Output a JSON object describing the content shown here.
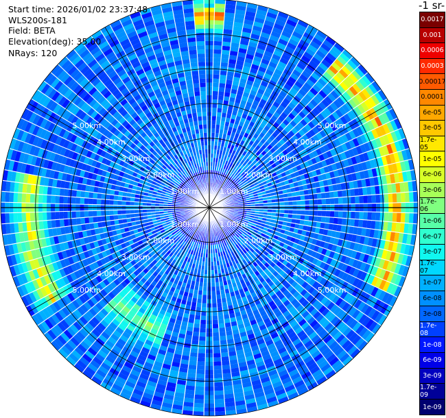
{
  "info": {
    "start_time": "Start time: 2026/01/02 23:37:48",
    "instrument": "WLS200s-181",
    "field": "Field: BETA",
    "elevation": "Elevation(deg): 35.00",
    "nrays": "NRays: 120"
  },
  "colorbar": {
    "title": "-1 sr-",
    "labels": [
      "0.0017",
      "0.001",
      "0.0006",
      "0.0003",
      "0.00017",
      "0.0001",
      "6e-05",
      "3e-05",
      "1.7e-05",
      "1e-05",
      "6e-06",
      "3e-06",
      "1.7e-06",
      "1e-06",
      "6e-07",
      "3e-07",
      "1.7e-07",
      "1e-07",
      "6e-08",
      "3e-08",
      "1.7e-08",
      "1e-08",
      "6e-09",
      "3e-09",
      "1.7e-09",
      "1e-09"
    ],
    "colors": [
      "#7a0000",
      "#b80000",
      "#ee0000",
      "#ff2a00",
      "#ff5a00",
      "#ff8800",
      "#ffa800",
      "#ffc800",
      "#ffe800",
      "#ffff00",
      "#d8ff28",
      "#a8ff58",
      "#80ff80",
      "#58ffa8",
      "#30ffd0",
      "#10f8f0",
      "#00d8ff",
      "#00b0ff",
      "#0090ff",
      "#0068ff",
      "#0040ff",
      "#0018ff",
      "#0000e8",
      "#0000c0",
      "#000098",
      "#000070"
    ]
  },
  "chart_data": {
    "type": "heatmap",
    "projection": "polar-ppi",
    "field": "BETA",
    "nrays": 120,
    "elevation_deg": 35.0,
    "range_unit": "km",
    "range_rings_km": [
      1,
      2,
      3,
      4,
      5
    ],
    "ring_labels": [
      "1.00km",
      "2.00km",
      "3.00km",
      "4.00km",
      "5.00km"
    ],
    "max_range_km": 6.0,
    "value_range": [
      1e-09,
      0.0017
    ],
    "log_scale": true,
    "enhanced_sectors": [
      {
        "azimuth_deg_from_north": [
          40,
          115
        ],
        "range_km": [
          4.8,
          5.9
        ],
        "peak_value": 0.0003
      },
      {
        "azimuth_deg_from_north": [
          -5,
          5
        ],
        "range_km": [
          4.9,
          6.0
        ],
        "peak_value": 0.0006
      },
      {
        "azimuth_deg_from_north": [
          240,
          280
        ],
        "range_km": [
          4.5,
          5.8
        ],
        "peak_value": 3e-05
      },
      {
        "azimuth_deg_from_north": [
          200,
          225
        ],
        "range_km": [
          3.0,
          4.5
        ],
        "peak_value": 3e-06
      }
    ]
  }
}
